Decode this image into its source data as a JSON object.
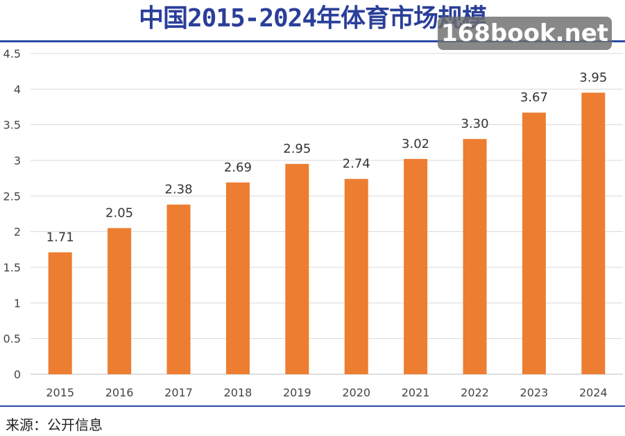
{
  "title": "中国2015-2024年体育市场规模",
  "watermark": "168book.net",
  "source": "来源：公开信息",
  "colors": {
    "bar": "#ed7d31",
    "title": "#2a3f99",
    "rule": "#2c4aa6",
    "grid": "#d9d9d9"
  },
  "chart_data": {
    "type": "bar",
    "title": "中国2015-2024年体育市场规模",
    "xlabel": "",
    "ylabel": "",
    "categories": [
      "2015",
      "2016",
      "2017",
      "2018",
      "2019",
      "2020",
      "2021",
      "2022",
      "2023",
      "2024"
    ],
    "values": [
      1.71,
      2.05,
      2.38,
      2.69,
      2.95,
      2.74,
      3.02,
      3.3,
      3.67,
      3.95
    ],
    "value_labels": [
      "1.71",
      "2.05",
      "2.38",
      "2.69",
      "2.95",
      "2.74",
      "3.02",
      "3.30",
      "3.67",
      "3.95"
    ],
    "ylim": [
      0,
      4.5
    ],
    "yticks": [
      "0",
      "0.5",
      "1",
      "1.5",
      "2",
      "2.5",
      "3",
      "3.5",
      "4",
      "4.5"
    ],
    "grid": true,
    "legend": false
  }
}
